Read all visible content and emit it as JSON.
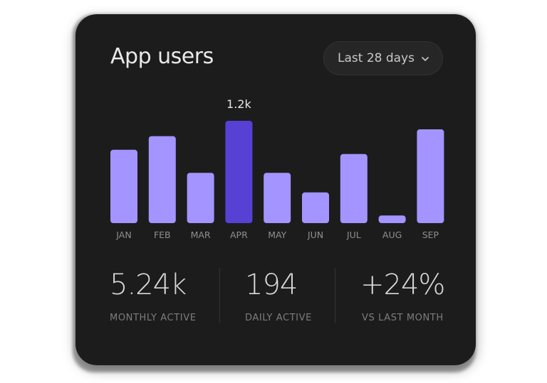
{
  "card": {
    "title": "App users",
    "range_label": "Last 28 days"
  },
  "chart_data": {
    "type": "bar",
    "categories": [
      "JAN",
      "FEB",
      "MAR",
      "APR",
      "MAY",
      "JUN",
      "JUL",
      "AUG",
      "SEP"
    ],
    "values": [
      860,
      1020,
      590,
      1200,
      590,
      360,
      810,
      90,
      1100
    ],
    "highlighted_index": 3,
    "highlight_label": "1.2k",
    "bar_color": "#a394ff",
    "highlight_color": "#5740d4",
    "ylim": [
      0,
      1200
    ]
  },
  "stats": [
    {
      "value": "5.24k",
      "label": "MONTHLY ACTIVE"
    },
    {
      "value": "194",
      "label": "DAILY ACTIVE"
    },
    {
      "value": "+24%",
      "label": "VS LAST MONTH"
    }
  ],
  "colors": {
    "card_bg": "#1c1c1c",
    "muted_text": "#7d7d7d"
  }
}
